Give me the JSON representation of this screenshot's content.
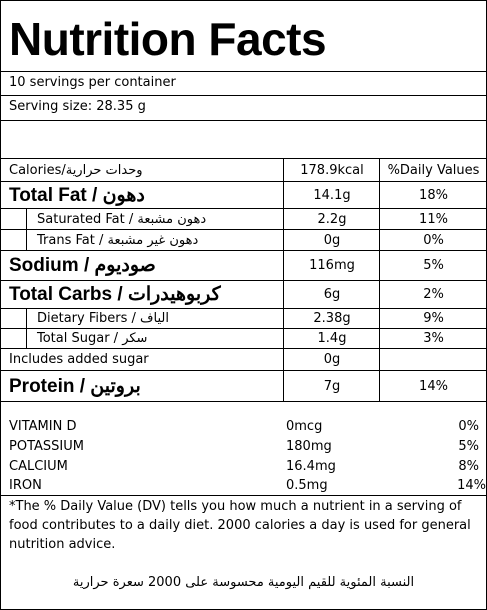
{
  "header": {
    "title": "Nutrition Facts",
    "servings": "10 servings per container",
    "serving_size": "Serving size: 28.35 g"
  },
  "table": {
    "calories": {
      "label": "Calories/وحدات حرارية",
      "amount": "178.9kcal",
      "daily": "%Daily Values"
    },
    "rows": [
      {
        "label": "Total Fat / دهون",
        "amount": "14.1g",
        "daily": "18%"
      },
      {
        "label": "Saturated Fat / دهون مشبعة",
        "amount": "2.2g",
        "daily": "11%"
      },
      {
        "label": "Trans Fat / دهون غير مشبعة",
        "amount": "0g",
        "daily": "0%"
      },
      {
        "label": "Sodium / صوديوم",
        "amount": "116mg",
        "daily": "5%"
      },
      {
        "label": "Total Carbs / كربوهيدرات",
        "amount": "6g",
        "daily": "2%"
      },
      {
        "label": "Dietary Fibers / الياف",
        "amount": "2.38g",
        "daily": "9%"
      },
      {
        "label": "Total Sugar / سكر",
        "amount": "1.4g",
        "daily": "3%"
      },
      {
        "label": "Includes added sugar",
        "amount": "0g"
      },
      {
        "label": "Protein / بروتين",
        "amount": "7g",
        "daily": "14%"
      }
    ]
  },
  "vitamins": [
    {
      "name": "VITAMIN D",
      "amount": "0mcg",
      "daily": "0%"
    },
    {
      "name": "POTASSIUM",
      "amount": "180mg",
      "daily": "5%"
    },
    {
      "name": "CALCIUM",
      "amount": "16.4mg",
      "daily": "8%"
    },
    {
      "name": "IRON",
      "amount": "0.5mg",
      "daily": "14%"
    }
  ],
  "footnote": "*The % Daily Value (DV) tells you how much a nutrient in a serving of food contributes to a daily diet. 2000 calories a day is used for general nutrition advice.",
  "footnote_arabic": "النسبة المئوية للقيم اليومية محسوسة على 2000 سعرة حرارية"
}
